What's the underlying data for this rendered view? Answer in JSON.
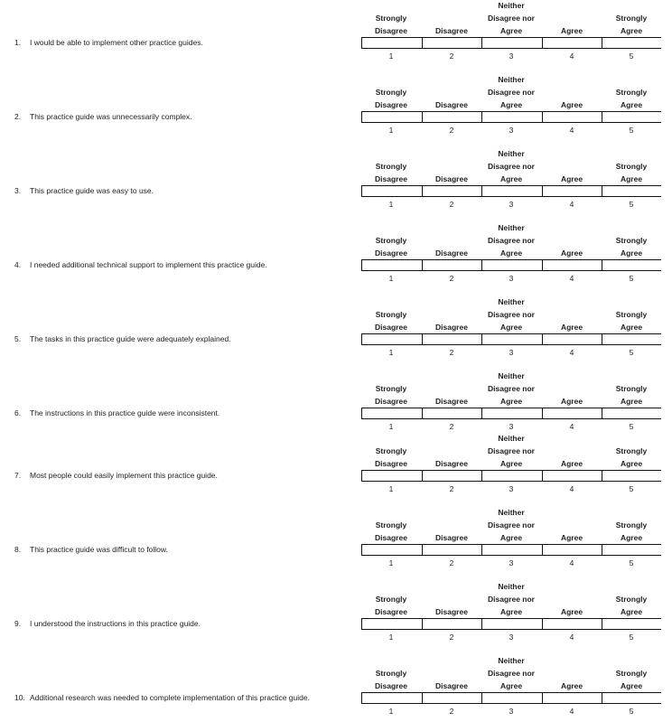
{
  "scale": {
    "headers": [
      [
        "Strongly",
        "Disagree"
      ],
      [
        "Disagree"
      ],
      [
        "Neither",
        "Disagree nor",
        "Agree"
      ],
      [
        "Agree"
      ],
      [
        "Strongly",
        "Agree"
      ]
    ],
    "numbers": [
      "1",
      "2",
      "3",
      "4",
      "5"
    ]
  },
  "questions": [
    {
      "num": "1.",
      "text": "I would be able to implement other practice guides."
    },
    {
      "num": "2.",
      "text": "This practice guide was unnecessarily complex."
    },
    {
      "num": "3.",
      "text": "This practice guide was easy to use."
    },
    {
      "num": "4.",
      "text": "I needed additional technical support to implement this practice guide."
    },
    {
      "num": "5.",
      "text": "The tasks in this practice guide were adequately explained."
    },
    {
      "num": "6.",
      "text": "The instructions in this practice guide were inconsistent."
    },
    {
      "num": "7.",
      "text": "Most people could easily implement this practice guide."
    },
    {
      "num": "8.",
      "text": "This practice guide was difficult to follow."
    },
    {
      "num": "9.",
      "text": "I understood the instructions in this practice guide."
    },
    {
      "num": "10.",
      "text": "Additional research was needed to complete implementation of this practice guide."
    }
  ]
}
